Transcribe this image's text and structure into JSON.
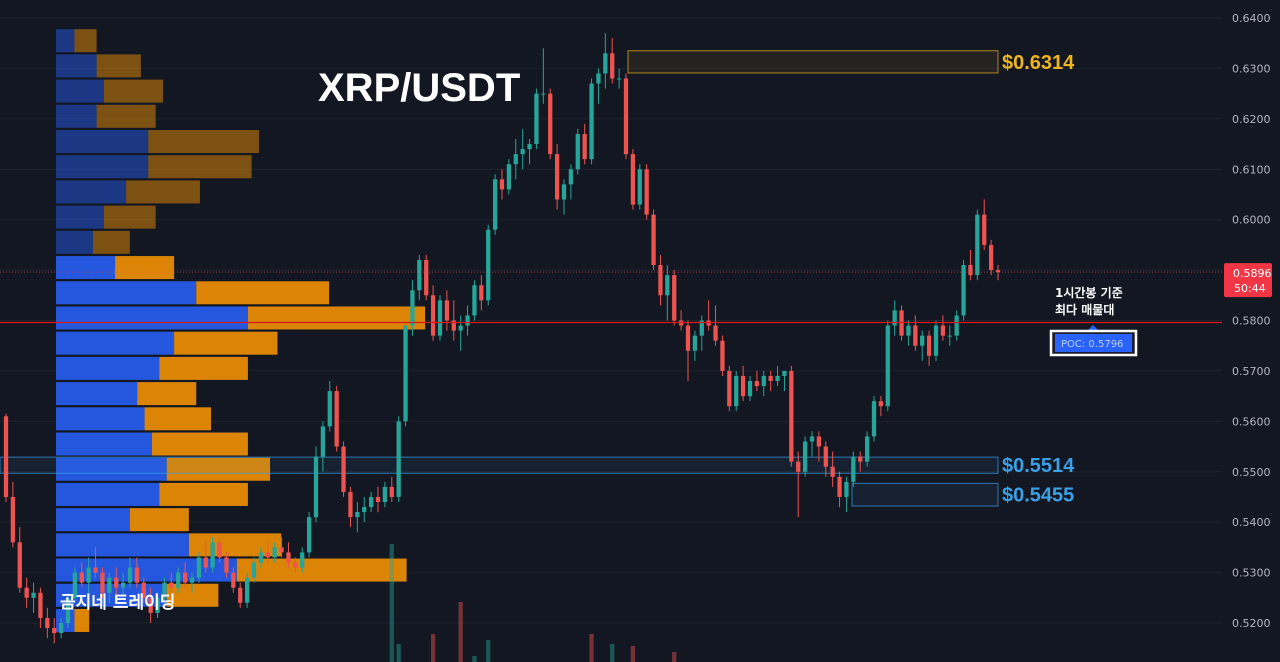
{
  "chart_data": {
    "type": "candlestick",
    "title": "XRP/USDT",
    "watermark": "곰지네 트레이딩",
    "y_ticks": [
      "0.6400",
      "0.6300",
      "0.6200",
      "0.6100",
      "0.6000",
      "0.5900",
      "0.5800",
      "0.5700",
      "0.5600",
      "0.5500",
      "0.5400",
      "0.5300",
      "0.5200"
    ],
    "ylim": [
      0.5175,
      0.6425
    ],
    "current_price": {
      "label": "0.5896",
      "countdown": "50:44",
      "value": 0.5896
    },
    "poc": {
      "value": 0.5796,
      "label": "POC: 0.5796",
      "note_line1": "1시간봉 기준",
      "note_line2": "최다 매물대"
    },
    "levels": [
      {
        "label": "$0.6314",
        "y_top": 0.6335,
        "y_bottom": 0.6291,
        "color": "#f0b41c"
      },
      {
        "label": "$0.5514",
        "y_top": 0.5529,
        "y_bottom": 0.5497,
        "color": "#3aa0e8"
      },
      {
        "label": "$0.5455",
        "y_top": 0.5477,
        "y_bottom": 0.5432,
        "color": "#3aa0e8"
      }
    ],
    "volume_profile": [
      {
        "price": 0.6355,
        "buy": 0.05,
        "sell": 0.06
      },
      {
        "price": 0.6305,
        "buy": 0.11,
        "sell": 0.12
      },
      {
        "price": 0.6255,
        "buy": 0.13,
        "sell": 0.16
      },
      {
        "price": 0.6205,
        "buy": 0.11,
        "sell": 0.16
      },
      {
        "price": 0.6155,
        "buy": 0.25,
        "sell": 0.3
      },
      {
        "price": 0.6105,
        "buy": 0.25,
        "sell": 0.28
      },
      {
        "price": 0.6055,
        "buy": 0.19,
        "sell": 0.2
      },
      {
        "price": 0.6005,
        "buy": 0.13,
        "sell": 0.14
      },
      {
        "price": 0.5955,
        "buy": 0.1,
        "sell": 0.1
      },
      {
        "price": 0.5905,
        "buy": 0.16,
        "sell": 0.16
      },
      {
        "price": 0.5855,
        "buy": 0.38,
        "sell": 0.36
      },
      {
        "price": 0.5805,
        "buy": 0.52,
        "sell": 0.48
      },
      {
        "price": 0.5755,
        "buy": 0.32,
        "sell": 0.28
      },
      {
        "price": 0.5705,
        "buy": 0.28,
        "sell": 0.24
      },
      {
        "price": 0.5655,
        "buy": 0.22,
        "sell": 0.16
      },
      {
        "price": 0.5605,
        "buy": 0.24,
        "sell": 0.18
      },
      {
        "price": 0.5555,
        "buy": 0.26,
        "sell": 0.26
      },
      {
        "price": 0.5505,
        "buy": 0.3,
        "sell": 0.28
      },
      {
        "price": 0.5455,
        "buy": 0.28,
        "sell": 0.24
      },
      {
        "price": 0.5405,
        "buy": 0.2,
        "sell": 0.16
      },
      {
        "price": 0.5355,
        "buy": 0.36,
        "sell": 0.25
      },
      {
        "price": 0.5305,
        "buy": 0.49,
        "sell": 0.46
      },
      {
        "price": 0.5255,
        "buy": 0.3,
        "sell": 0.14
      },
      {
        "price": 0.5205,
        "buy": 0.05,
        "sell": 0.04
      }
    ],
    "candles": [
      [
        0.561,
        0.5615,
        0.544,
        0.545
      ],
      [
        0.545,
        0.548,
        0.535,
        0.536
      ],
      [
        0.536,
        0.539,
        0.526,
        0.527
      ],
      [
        0.527,
        0.529,
        0.523,
        0.525
      ],
      [
        0.525,
        0.528,
        0.522,
        0.526
      ],
      [
        0.526,
        0.527,
        0.519,
        0.521
      ],
      [
        0.521,
        0.523,
        0.517,
        0.519
      ],
      [
        0.519,
        0.521,
        0.516,
        0.518
      ],
      [
        0.518,
        0.521,
        0.517,
        0.52
      ],
      [
        0.52,
        0.526,
        0.519,
        0.525
      ],
      [
        0.525,
        0.531,
        0.524,
        0.53
      ],
      [
        0.53,
        0.532,
        0.527,
        0.528
      ],
      [
        0.528,
        0.533,
        0.526,
        0.531
      ],
      [
        0.531,
        0.535,
        0.529,
        0.53
      ],
      [
        0.53,
        0.531,
        0.525,
        0.526
      ],
      [
        0.526,
        0.53,
        0.524,
        0.529
      ],
      [
        0.529,
        0.531,
        0.525,
        0.527
      ],
      [
        0.527,
        0.53,
        0.525,
        0.528
      ],
      [
        0.528,
        0.533,
        0.527,
        0.531
      ],
      [
        0.531,
        0.533,
        0.527,
        0.528
      ],
      [
        0.528,
        0.529,
        0.524,
        0.525
      ],
      [
        0.525,
        0.527,
        0.52,
        0.522
      ],
      [
        0.522,
        0.526,
        0.521,
        0.525
      ],
      [
        0.525,
        0.529,
        0.524,
        0.528
      ],
      [
        0.528,
        0.53,
        0.525,
        0.527
      ],
      [
        0.527,
        0.531,
        0.526,
        0.53
      ],
      [
        0.53,
        0.532,
        0.527,
        0.528
      ],
      [
        0.528,
        0.53,
        0.526,
        0.529
      ],
      [
        0.529,
        0.534,
        0.528,
        0.533
      ],
      [
        0.533,
        0.536,
        0.53,
        0.531
      ],
      [
        0.531,
        0.537,
        0.53,
        0.536
      ],
      [
        0.536,
        0.537,
        0.532,
        0.533
      ],
      [
        0.533,
        0.534,
        0.529,
        0.53
      ],
      [
        0.53,
        0.531,
        0.526,
        0.527
      ],
      [
        0.527,
        0.528,
        0.523,
        0.524
      ],
      [
        0.524,
        0.53,
        0.523,
        0.529
      ],
      [
        0.529,
        0.533,
        0.528,
        0.532
      ],
      [
        0.532,
        0.535,
        0.531,
        0.534
      ],
      [
        0.534,
        0.536,
        0.532,
        0.533
      ],
      [
        0.533,
        0.536,
        0.532,
        0.535
      ],
      [
        0.535,
        0.537,
        0.533,
        0.534
      ],
      [
        0.534,
        0.536,
        0.531,
        0.532
      ],
      [
        0.532,
        0.533,
        0.53,
        0.531
      ],
      [
        0.531,
        0.535,
        0.53,
        0.534
      ],
      [
        0.534,
        0.542,
        0.533,
        0.541
      ],
      [
        0.541,
        0.555,
        0.54,
        0.553
      ],
      [
        0.553,
        0.56,
        0.55,
        0.559
      ],
      [
        0.559,
        0.568,
        0.558,
        0.566
      ],
      [
        0.566,
        0.567,
        0.554,
        0.555
      ],
      [
        0.555,
        0.556,
        0.545,
        0.546
      ],
      [
        0.546,
        0.547,
        0.539,
        0.541
      ],
      [
        0.541,
        0.544,
        0.538,
        0.542
      ],
      [
        0.542,
        0.545,
        0.54,
        0.543
      ],
      [
        0.543,
        0.546,
        0.542,
        0.545
      ],
      [
        0.545,
        0.547,
        0.542,
        0.544
      ],
      [
        0.544,
        0.548,
        0.543,
        0.547
      ],
      [
        0.547,
        0.549,
        0.544,
        0.545
      ],
      [
        0.545,
        0.561,
        0.544,
        0.56
      ],
      [
        0.56,
        0.58,
        0.559,
        0.579
      ],
      [
        0.579,
        0.588,
        0.577,
        0.586
      ],
      [
        0.586,
        0.593,
        0.584,
        0.592
      ],
      [
        0.592,
        0.593,
        0.584,
        0.585
      ],
      [
        0.585,
        0.587,
        0.576,
        0.577
      ],
      [
        0.577,
        0.585,
        0.576,
        0.584
      ],
      [
        0.584,
        0.586,
        0.578,
        0.58
      ],
      [
        0.58,
        0.584,
        0.576,
        0.578
      ],
      [
        0.578,
        0.581,
        0.574,
        0.579
      ],
      [
        0.579,
        0.583,
        0.577,
        0.581
      ],
      [
        0.581,
        0.588,
        0.58,
        0.587
      ],
      [
        0.587,
        0.589,
        0.582,
        0.584
      ],
      [
        0.584,
        0.599,
        0.583,
        0.598
      ],
      [
        0.598,
        0.609,
        0.597,
        0.608
      ],
      [
        0.608,
        0.61,
        0.604,
        0.606
      ],
      [
        0.606,
        0.612,
        0.605,
        0.611
      ],
      [
        0.611,
        0.616,
        0.608,
        0.613
      ],
      [
        0.613,
        0.618,
        0.61,
        0.614
      ],
      [
        0.614,
        0.616,
        0.611,
        0.615
      ],
      [
        0.615,
        0.626,
        0.614,
        0.625
      ],
      [
        0.625,
        0.634,
        0.623,
        0.625
      ],
      [
        0.625,
        0.626,
        0.612,
        0.613
      ],
      [
        0.613,
        0.615,
        0.602,
        0.604
      ],
      [
        0.604,
        0.608,
        0.601,
        0.607
      ],
      [
        0.607,
        0.611,
        0.604,
        0.61
      ],
      [
        0.61,
        0.618,
        0.609,
        0.617
      ],
      [
        0.617,
        0.619,
        0.611,
        0.612
      ],
      [
        0.612,
        0.628,
        0.611,
        0.627
      ],
      [
        0.627,
        0.63,
        0.623,
        0.629
      ],
      [
        0.629,
        0.637,
        0.626,
        0.633
      ],
      [
        0.633,
        0.636,
        0.627,
        0.628
      ],
      [
        0.628,
        0.63,
        0.626,
        0.628
      ],
      [
        0.628,
        0.629,
        0.612,
        0.613
      ],
      [
        0.613,
        0.614,
        0.602,
        0.603
      ],
      [
        0.603,
        0.611,
        0.602,
        0.61
      ],
      [
        0.61,
        0.611,
        0.6,
        0.601
      ],
      [
        0.601,
        0.602,
        0.59,
        0.591
      ],
      [
        0.591,
        0.593,
        0.583,
        0.585
      ],
      [
        0.585,
        0.591,
        0.58,
        0.589
      ],
      [
        0.589,
        0.59,
        0.579,
        0.58
      ],
      [
        0.58,
        0.582,
        0.578,
        0.579
      ],
      [
        0.579,
        0.58,
        0.568,
        0.574
      ],
      [
        0.574,
        0.578,
        0.572,
        0.577
      ],
      [
        0.577,
        0.581,
        0.574,
        0.58
      ],
      [
        0.58,
        0.584,
        0.578,
        0.579
      ],
      [
        0.579,
        0.583,
        0.575,
        0.576
      ],
      [
        0.576,
        0.577,
        0.569,
        0.57
      ],
      [
        0.57,
        0.571,
        0.562,
        0.563
      ],
      [
        0.563,
        0.57,
        0.562,
        0.569
      ],
      [
        0.569,
        0.571,
        0.564,
        0.565
      ],
      [
        0.565,
        0.569,
        0.564,
        0.568
      ],
      [
        0.568,
        0.57,
        0.566,
        0.567
      ],
      [
        0.567,
        0.57,
        0.565,
        0.569
      ],
      [
        0.569,
        0.57,
        0.566,
        0.568
      ],
      [
        0.568,
        0.571,
        0.567,
        0.569
      ],
      [
        0.569,
        0.57,
        0.566,
        0.57
      ],
      [
        0.57,
        0.571,
        0.551,
        0.552
      ],
      [
        0.552,
        0.554,
        0.541,
        0.55
      ],
      [
        0.55,
        0.557,
        0.549,
        0.556
      ],
      [
        0.556,
        0.558,
        0.553,
        0.557
      ],
      [
        0.557,
        0.558,
        0.552,
        0.555
      ],
      [
        0.555,
        0.556,
        0.549,
        0.551
      ],
      [
        0.551,
        0.554,
        0.547,
        0.549
      ],
      [
        0.549,
        0.55,
        0.543,
        0.545
      ],
      [
        0.545,
        0.549,
        0.542,
        0.548
      ],
      [
        0.548,
        0.554,
        0.547,
        0.553
      ],
      [
        0.553,
        0.554,
        0.55,
        0.552
      ],
      [
        0.552,
        0.558,
        0.551,
        0.557
      ],
      [
        0.557,
        0.565,
        0.556,
        0.564
      ],
      [
        0.564,
        0.565,
        0.561,
        0.563
      ],
      [
        0.563,
        0.58,
        0.562,
        0.579
      ],
      [
        0.579,
        0.584,
        0.577,
        0.582
      ],
      [
        0.582,
        0.583,
        0.576,
        0.577
      ],
      [
        0.577,
        0.58,
        0.575,
        0.579
      ],
      [
        0.579,
        0.581,
        0.574,
        0.575
      ],
      [
        0.575,
        0.578,
        0.572,
        0.577
      ],
      [
        0.577,
        0.578,
        0.571,
        0.573
      ],
      [
        0.573,
        0.58,
        0.572,
        0.579
      ],
      [
        0.579,
        0.581,
        0.576,
        0.577
      ],
      [
        0.577,
        0.579,
        0.575,
        0.577
      ],
      [
        0.577,
        0.582,
        0.576,
        0.581
      ],
      [
        0.581,
        0.592,
        0.58,
        0.591
      ],
      [
        0.591,
        0.594,
        0.588,
        0.589
      ],
      [
        0.589,
        0.602,
        0.588,
        0.601
      ],
      [
        0.601,
        0.604,
        0.594,
        0.595
      ],
      [
        0.595,
        0.596,
        0.589,
        0.59
      ],
      [
        0.59,
        0.591,
        0.588,
        0.5896
      ]
    ],
    "volume_bars": [
      {
        "i": 56,
        "v": 0.59,
        "dir": "up"
      },
      {
        "i": 57,
        "v": 0.09,
        "dir": "up"
      },
      {
        "i": 62,
        "v": 0.14,
        "dir": "down"
      },
      {
        "i": 66,
        "v": 0.3,
        "dir": "down"
      },
      {
        "i": 68,
        "v": 0.03,
        "dir": "up"
      },
      {
        "i": 70,
        "v": 0.11,
        "dir": "up"
      },
      {
        "i": 85,
        "v": 0.14,
        "dir": "down"
      },
      {
        "i": 88,
        "v": 0.09,
        "dir": "up"
      },
      {
        "i": 91,
        "v": 0.08,
        "dir": "down"
      },
      {
        "i": 97,
        "v": 0.05,
        "dir": "down"
      }
    ]
  },
  "colors": {
    "up": "#26a69a",
    "down": "#ef5350",
    "buy_profile": "#2962ff",
    "sell_profile": "#ff9800",
    "poc_line": "#d81b1b",
    "price_tag": "#f23645"
  }
}
